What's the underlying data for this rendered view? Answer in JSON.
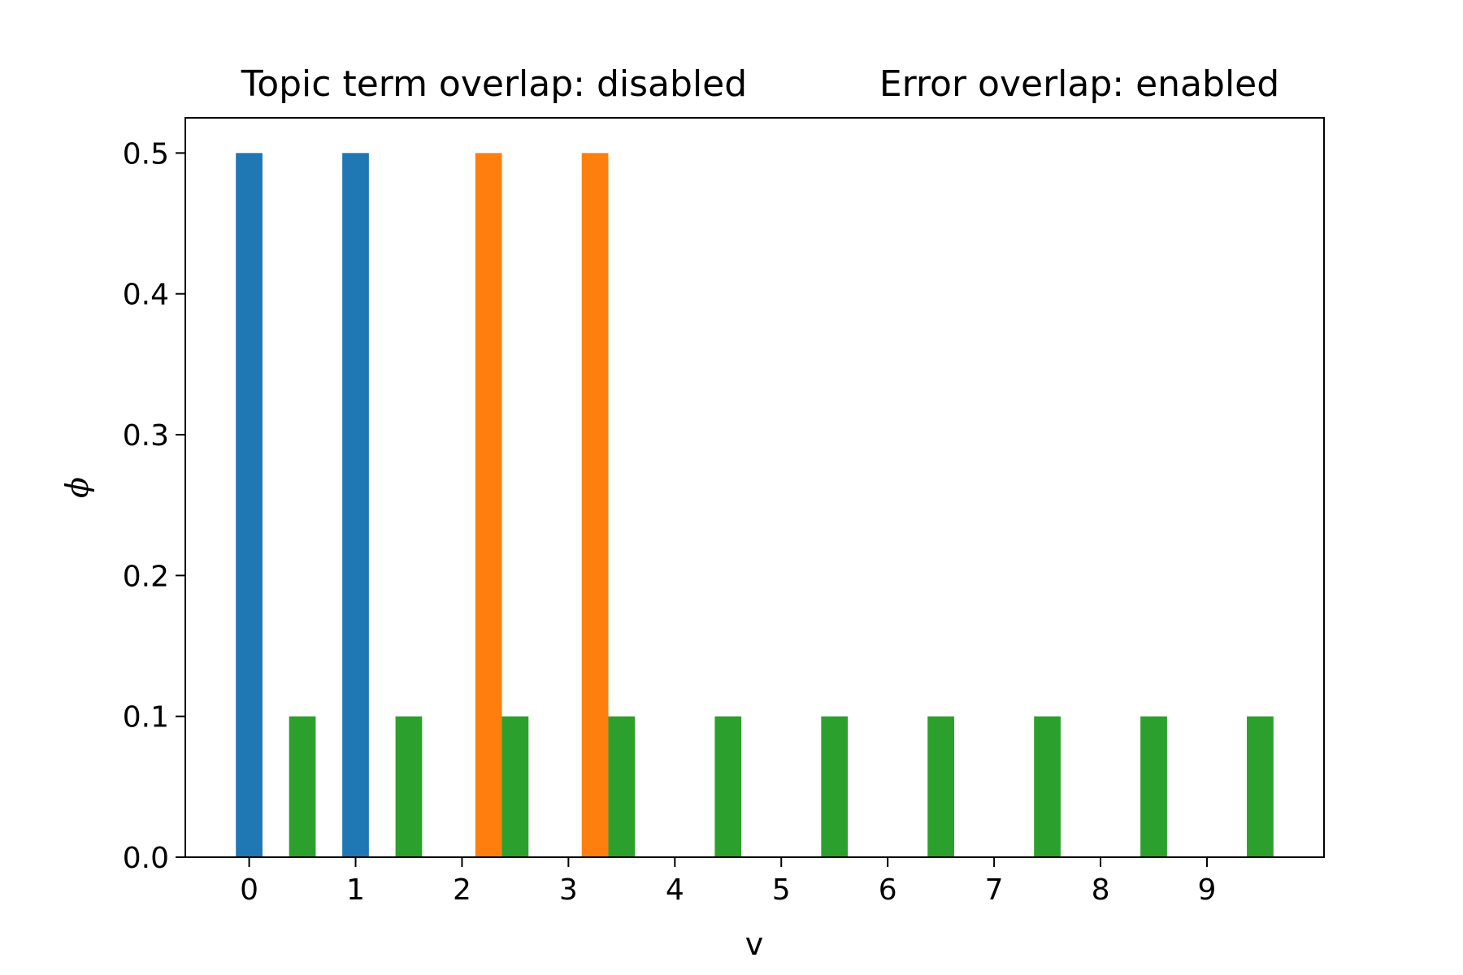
{
  "chart_data": {
    "type": "bar",
    "title_left": "Topic term overlap: disabled",
    "title_right": "Error overlap: enabled",
    "xlabel": "v",
    "ylabel": "ϕ",
    "xlim": [
      -0.6,
      10.1
    ],
    "ylim": [
      0,
      0.525
    ],
    "xticks": [
      "0",
      "1",
      "2",
      "3",
      "4",
      "5",
      "6",
      "7",
      "8",
      "9"
    ],
    "yticks": [
      "0.0",
      "0.1",
      "0.2",
      "0.3",
      "0.4",
      "0.5"
    ],
    "bar_width": 0.25,
    "series": [
      {
        "color": "#1f77b4",
        "x": [
          0,
          1
        ],
        "values": [
          0.5,
          0.5
        ]
      },
      {
        "color": "#ff7f0e",
        "x": [
          2.25,
          3.25
        ],
        "values": [
          0.5,
          0.5
        ]
      },
      {
        "color": "#2ca02c",
        "x": [
          0.5,
          1.5,
          2.5,
          3.5,
          4.5,
          5.5,
          6.5,
          7.5,
          8.5,
          9.5
        ],
        "values": [
          0.1,
          0.1,
          0.1,
          0.1,
          0.1,
          0.1,
          0.1,
          0.1,
          0.1,
          0.1
        ]
      }
    ],
    "grid": false,
    "legend": "none"
  }
}
